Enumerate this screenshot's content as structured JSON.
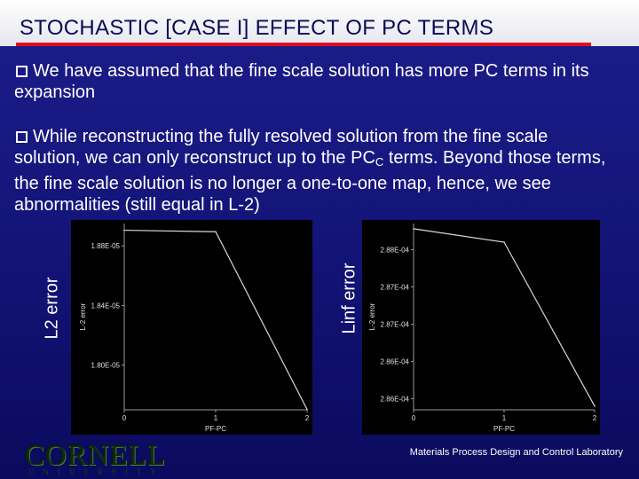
{
  "slide": {
    "title": "STOCHASTIC [CASE I] EFFECT OF PC TERMS",
    "bullet1": "We have assumed that the fine scale solution has more PC terms in its expansion",
    "bullet2_part1": "While reconstructing the fully resolved solution from the fine scale solution, we can only reconstruct up to the PC",
    "bullet2_sub": "C",
    "bullet2_part2": " terms. Beyond those terms, the fine scale solution is no longer a one-to-one map, hence, we see abnormalities (still equal in L-2)",
    "left_plot_label": "L2 error",
    "right_plot_label": "Linf error",
    "footer_logo": "CORNELL",
    "footer_logo_sub": "UNIVERSITY",
    "footer_lab": "Materials Process Design and Control Laboratory"
  },
  "colors": {
    "accent_rule": "#e0101e",
    "background": "#14157a"
  },
  "chart_data": [
    {
      "type": "line",
      "ylabel": "L-2 error",
      "xlabel": "PF-PC",
      "x_ticks": [
        "0",
        "1",
        "2"
      ],
      "y_ticks": [
        "1.88E-05",
        "1.84E-05",
        "1.80E-05"
      ],
      "xlim": [
        0,
        2
      ],
      "ylim": [
        1.77e-05,
        1.895e-05
      ],
      "series": [
        {
          "x": [
            0,
            1,
            2
          ],
          "y": [
            1.8905e-05,
            1.8895e-05,
            1.7703e-05
          ]
        }
      ]
    },
    {
      "type": "line",
      "ylabel": "L-2 error",
      "xlabel": "PF-PC",
      "x_ticks": [
        "0",
        "1",
        "2"
      ],
      "y_ticks": [
        "2.88E-04",
        "2.87E-04",
        "2.87E-04",
        "2.86E-04",
        "2.86E-04"
      ],
      "xlim": [
        0,
        2
      ],
      "ylim": [
        0.00028585,
        0.00028835
      ],
      "series": [
        {
          "x": [
            0,
            1,
            2
          ],
          "y": [
            0.00028828,
            0.0002881,
            0.0002859
          ]
        }
      ]
    }
  ]
}
